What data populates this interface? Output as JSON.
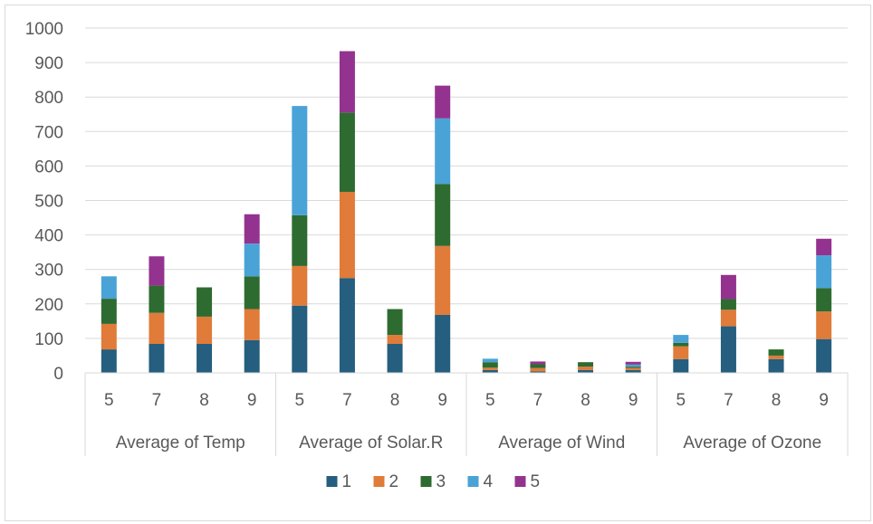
{
  "chart_data": {
    "type": "bar",
    "stacked": true,
    "groups": [
      {
        "label": "Average of Temp",
        "categories": [
          "5",
          "7",
          "8",
          "9"
        ]
      },
      {
        "label": "Average of Solar.R",
        "categories": [
          "5",
          "7",
          "8",
          "9"
        ]
      },
      {
        "label": "Average of Wind",
        "categories": [
          "5",
          "7",
          "8",
          "9"
        ]
      },
      {
        "label": "Average of Ozone",
        "categories": [
          "5",
          "7",
          "8",
          "9"
        ]
      }
    ],
    "series": [
      {
        "name": "1",
        "color": "#255e7e",
        "values": [
          68,
          84,
          84,
          95,
          195,
          275,
          84,
          168,
          8,
          4,
          8,
          8,
          40,
          135,
          40,
          98
        ]
      },
      {
        "name": "2",
        "color": "#e07b39",
        "values": [
          74,
          90,
          79,
          90,
          115,
          250,
          26,
          200,
          7,
          10,
          10,
          6,
          37,
          48,
          10,
          80
        ]
      },
      {
        "name": "3",
        "color": "#2e6b30",
        "values": [
          73,
          79,
          85,
          95,
          147,
          230,
          75,
          180,
          16,
          11,
          13,
          4,
          10,
          31,
          18,
          68
        ]
      },
      {
        "name": "4",
        "color": "#4aa3d7",
        "values": [
          65,
          0,
          0,
          95,
          317,
          0,
          0,
          190,
          10,
          0,
          0,
          6,
          23,
          0,
          0,
          95
        ]
      },
      {
        "name": "5",
        "color": "#93338f",
        "values": [
          0,
          85,
          0,
          85,
          0,
          178,
          0,
          95,
          0,
          8,
          0,
          8,
          0,
          70,
          0,
          48
        ]
      }
    ],
    "yticks": [
      "0",
      "100",
      "200",
      "300",
      "400",
      "500",
      "600",
      "700",
      "800",
      "900",
      "1000"
    ],
    "ylim": [
      0,
      1000
    ],
    "grid": true,
    "legend": "bottom"
  }
}
